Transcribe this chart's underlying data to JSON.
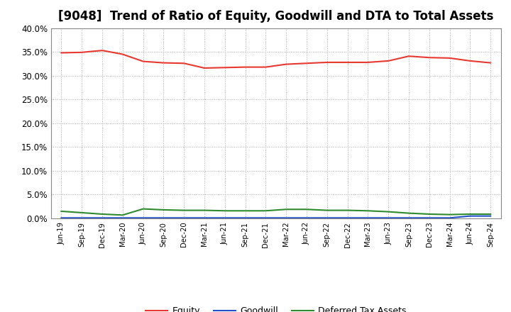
{
  "title": "[9048]  Trend of Ratio of Equity, Goodwill and DTA to Total Assets",
  "x_labels": [
    "Jun-19",
    "Sep-19",
    "Dec-19",
    "Mar-20",
    "Jun-20",
    "Sep-20",
    "Dec-20",
    "Mar-21",
    "Jun-21",
    "Sep-21",
    "Dec-21",
    "Mar-22",
    "Jun-22",
    "Sep-22",
    "Dec-22",
    "Mar-23",
    "Jun-23",
    "Sep-23",
    "Dec-23",
    "Mar-24",
    "Jun-24",
    "Sep-24"
  ],
  "equity": [
    34.8,
    34.9,
    35.3,
    34.5,
    33.0,
    32.7,
    32.6,
    31.6,
    31.7,
    31.8,
    31.8,
    32.4,
    32.6,
    32.8,
    32.8,
    32.8,
    33.1,
    34.1,
    33.8,
    33.7,
    33.1,
    32.7
  ],
  "goodwill": [
    0.1,
    0.1,
    0.1,
    0.1,
    0.1,
    0.1,
    0.1,
    0.1,
    0.1,
    0.1,
    0.1,
    0.1,
    0.1,
    0.1,
    0.1,
    0.1,
    0.1,
    0.1,
    0.1,
    0.1,
    0.5,
    0.5
  ],
  "dta": [
    1.5,
    1.2,
    0.9,
    0.7,
    2.0,
    1.8,
    1.7,
    1.7,
    1.6,
    1.6,
    1.6,
    1.9,
    1.9,
    1.7,
    1.7,
    1.6,
    1.4,
    1.1,
    0.9,
    0.8,
    0.9,
    0.9
  ],
  "equity_color": "#e8382f",
  "goodwill_color": "#2050c8",
  "dta_color": "#2e8b2e",
  "ylim": [
    0,
    40
  ],
  "yticks": [
    0,
    5,
    10,
    15,
    20,
    25,
    30,
    35,
    40
  ],
  "background_color": "#ffffff",
  "grid_color": "#aaaaaa",
  "title_fontsize": 12,
  "legend_labels": [
    "Equity",
    "Goodwill",
    "Deferred Tax Assets"
  ]
}
